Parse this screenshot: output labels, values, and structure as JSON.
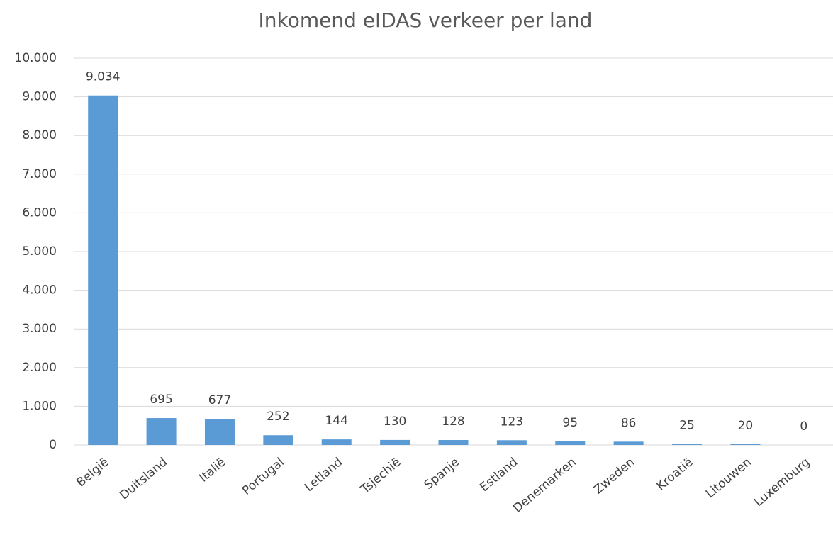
{
  "chart_data": {
    "type": "bar",
    "title": "Inkomend eIDAS verkeer per land",
    "categories": [
      "België",
      "Duitsland",
      "Italië",
      "Portugal",
      "Letland",
      "Tsjechië",
      "Spanje",
      "Estland",
      "Denemarken",
      "Zweden",
      "Kroatië",
      "Litouwen",
      "Luxemburg"
    ],
    "values": [
      9034,
      695,
      677,
      252,
      144,
      130,
      128,
      123,
      95,
      86,
      25,
      20,
      0
    ],
    "value_labels": [
      "9.034",
      "695",
      "677",
      "252",
      "144",
      "130",
      "128",
      "123",
      "95",
      "86",
      "25",
      "20",
      "0"
    ],
    "color": "#5b9bd5",
    "ylim": [
      0,
      10000
    ],
    "yticks": [
      0,
      {
        "value": 1000,
        "label": "1.000"
      },
      {
        "value": 2000,
        "label": "2.000"
      },
      {
        "value": 3000,
        "label": "3.000"
      },
      {
        "value": 4000,
        "label": "4.000"
      },
      {
        "value": 5000,
        "label": "5.000"
      },
      {
        "value": 6000,
        "label": "6.000"
      },
      {
        "value": 7000,
        "label": "7.000"
      },
      {
        "value": 8000,
        "label": "8.000"
      },
      {
        "value": 9000,
        "label": "9.000"
      },
      {
        "value": 10000,
        "label": "10.000"
      }
    ],
    "grid": true
  }
}
